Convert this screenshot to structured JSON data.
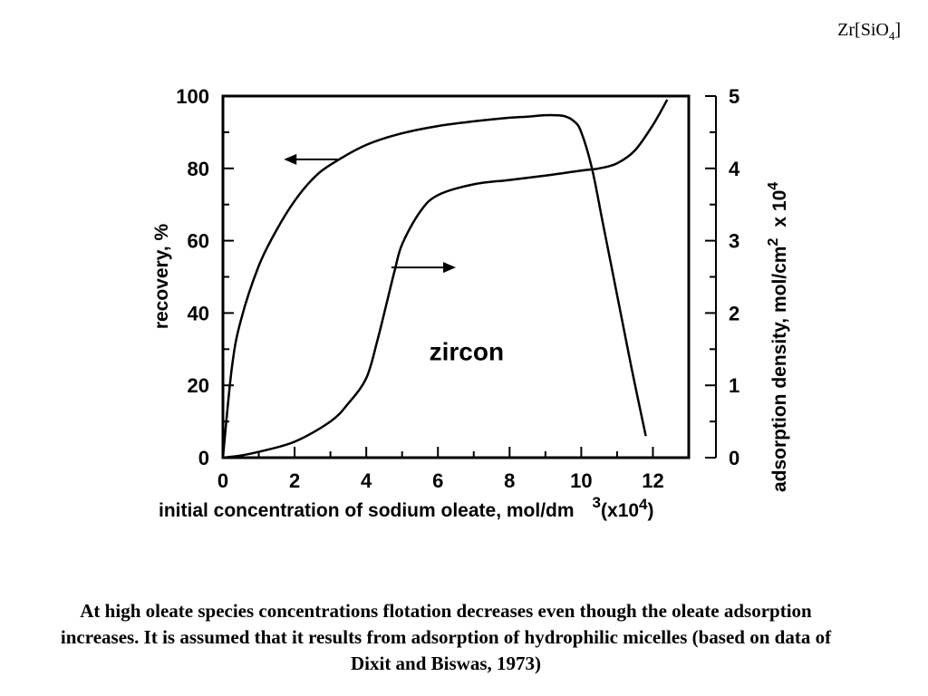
{
  "formula": {
    "base": "Zr[SiO",
    "sub": "4",
    "close": "]"
  },
  "caption": "At high oleate species concentrations flotation decreases even though the oleate adsorption increases. It is assumed that it results from adsorption of hydrophilic micelles (based on data of Dixit and Biswas, 1973)",
  "chart_data": {
    "type": "line",
    "annotation": "zircon",
    "x_axis": {
      "label": "initial concentration of sodium oleate, mol/dm",
      "label_sup": "3",
      "label_suffix_open": "(x10",
      "label_suffix_sup": "4",
      "label_suffix_close": ")",
      "range": [
        0,
        13
      ],
      "ticks": [
        "0",
        "2",
        "4",
        "6",
        "8",
        "10",
        "12"
      ]
    },
    "y_left": {
      "label": "recovery, %",
      "range": [
        0,
        100
      ],
      "ticks": [
        "0",
        "20",
        "40",
        "60",
        "80",
        "100"
      ]
    },
    "y_right": {
      "label": "adsorption density, mol/cm",
      "label_sup": "2",
      "label_suffix": "x 10",
      "label_suffix_sup": "4",
      "range": [
        0,
        5
      ],
      "ticks": [
        "0",
        "1",
        "2",
        "3",
        "4",
        "5"
      ]
    },
    "series": [
      {
        "axis": "left",
        "x": [
          0,
          0.25,
          0.5,
          1,
          1.5,
          2,
          2.5,
          3,
          4,
          5,
          6,
          7,
          8,
          8.5,
          9,
          9.5,
          9.8,
          10,
          10.3,
          10.6,
          11,
          11.4,
          11.8
        ],
        "y": [
          0,
          25,
          38,
          53,
          63,
          71,
          77,
          81,
          86.5,
          89.7,
          91.7,
          93,
          94,
          94.3,
          94.7,
          94.5,
          93,
          90,
          80,
          65,
          45,
          25,
          6
        ]
      },
      {
        "axis": "right",
        "x": [
          0,
          0.5,
          1,
          2,
          3,
          3.5,
          4,
          4.3,
          4.6,
          4.8,
          5,
          5.5,
          6,
          7,
          8,
          9,
          10,
          10.5,
          11,
          11.5,
          12,
          12.4
        ],
        "y": [
          0,
          0.03,
          0.08,
          0.22,
          0.5,
          0.75,
          1.1,
          1.6,
          2.2,
          2.6,
          2.95,
          3.4,
          3.63,
          3.78,
          3.84,
          3.9,
          3.97,
          4.0,
          4.07,
          4.25,
          4.6,
          4.95
        ]
      }
    ],
    "arrows": [
      {
        "points_to": "left",
        "x": [
          3.2,
          1.7
        ],
        "y": [
          82.5,
          82.5
        ]
      },
      {
        "points_to": "right",
        "x": [
          4.7,
          6.5
        ],
        "y": [
          2.63,
          2.63
        ]
      }
    ],
    "annotation_pos": {
      "x": 6.8,
      "y": 27
    }
  }
}
